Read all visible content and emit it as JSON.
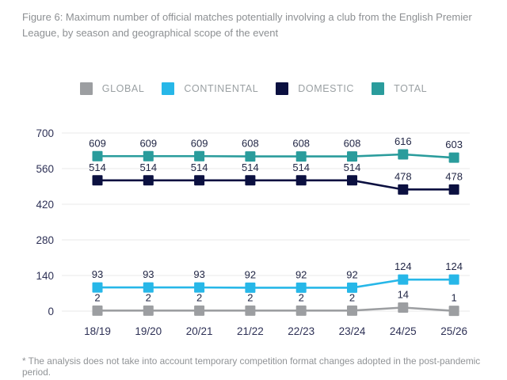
{
  "title": "Figure 6: Maximum number of official matches potentially involving a club from the English Premier League, by season and geographical scope of the event",
  "footnote": "* The analysis does not take into account temporary competition format changes adopted in the post-pandemic period.",
  "colors": {
    "global": "#9c9ea1",
    "continental": "#27b7e8",
    "domestic": "#0b1040",
    "total": "#2a9c9c",
    "gridline": "#e9e9ea",
    "tick_text": "#2e3156",
    "data_label_text": "#222746",
    "title_text": "#8d9093",
    "legend_text": "#9aa0a3"
  },
  "chart_data": {
    "type": "line",
    "categories": [
      "18/19",
      "19/20",
      "20/21",
      "21/22",
      "22/23",
      "23/24",
      "24/25",
      "25/26"
    ],
    "series": [
      {
        "name": "GLOBAL",
        "color": "#9c9ea1",
        "values": [
          2,
          2,
          2,
          2,
          2,
          2,
          14,
          1
        ]
      },
      {
        "name": "CONTINENTAL",
        "color": "#27b7e8",
        "values": [
          93,
          93,
          93,
          92,
          92,
          92,
          124,
          124
        ]
      },
      {
        "name": "DOMESTIC",
        "color": "#0b1040",
        "values": [
          514,
          514,
          514,
          514,
          514,
          514,
          478,
          478
        ]
      },
      {
        "name": "TOTAL",
        "color": "#2a9c9c",
        "values": [
          609,
          609,
          609,
          608,
          608,
          608,
          616,
          603
        ]
      }
    ],
    "title": "Figure 6: Maximum number of official matches potentially involving a club from the English Premier League, by season and geographical scope of the event",
    "xlabel": "",
    "ylabel": "",
    "yticks": [
      0,
      140,
      280,
      420,
      560,
      700
    ],
    "ylim": [
      0,
      700
    ],
    "grid": true,
    "legend_position": "top",
    "data_labels": true,
    "marker": "square"
  }
}
